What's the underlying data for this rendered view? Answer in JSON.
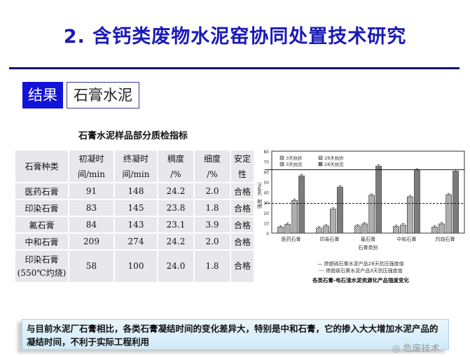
{
  "title": "2. 含钙类废物水泥窑协同处置技术研究",
  "tags": {
    "result": "结果",
    "topic": "石膏水泥"
  },
  "table": {
    "title": "石膏水泥样品部分质检指标",
    "headers": [
      [
        "石膏种类",
        ""
      ],
      [
        "初凝时",
        "间/min"
      ],
      [
        "终凝时",
        "间/min"
      ],
      [
        "稠度",
        "/%"
      ],
      [
        "细度",
        "/%"
      ],
      [
        "安定",
        "性"
      ]
    ],
    "rows": [
      [
        "医药石膏",
        "91",
        "148",
        "24.2",
        "2.0",
        "合格"
      ],
      [
        "印染石膏",
        "83",
        "145",
        "23.8",
        "1.8",
        "合格"
      ],
      [
        "氟石膏",
        "84",
        "143",
        "23.1",
        "3.9",
        "合格"
      ],
      [
        "中和石膏",
        "209",
        "274",
        "24.2",
        "2.0",
        "合格"
      ],
      [
        "印染石膏|(550℃灼烧)",
        "58",
        "100",
        "24.0",
        "1.8",
        "合格"
      ]
    ]
  },
  "chart_data": {
    "type": "bar",
    "ylabel": "强度（MPa）",
    "xlabel": "石膏类别",
    "ylim": [
      0,
      80
    ],
    "yticks": [
      0,
      10,
      20,
      30,
      40,
      50,
      60,
      70,
      80
    ],
    "categories": [
      "医药石膏",
      "印染石膏",
      "氟石膏",
      "中和石膏",
      "灼烧石膏"
    ],
    "series": [
      {
        "name": "3天抗折",
        "values": [
          6,
          5,
          7,
          6.5,
          6
        ]
      },
      {
        "name": "28天抗折",
        "values": [
          8.5,
          7,
          9,
          8,
          9
        ]
      },
      {
        "name": "3天抗压",
        "values": [
          32,
          23.5,
          37,
          35.5,
          37.5
        ]
      },
      {
        "name": "28天抗压",
        "values": [
          56,
          45,
          65.5,
          61.5,
          60.5
        ]
      }
    ],
    "reference_lines": [
      {
        "value": 62,
        "style": "solid",
        "label": "— 掺脱硫石膏水泥产品28天抗压强度值"
      },
      {
        "value": 29,
        "style": "dashed",
        "label": "--- 掺脱硫石膏水泥产品3天抗压强度值"
      }
    ],
    "caption": "各类石膏-电石渣水泥资源化产品强度变化",
    "legend_position": "top-left"
  },
  "note": "与目前水泥厂石膏相比，各类石膏凝结时间的变化差异大，特别是中和石膏，它的掺入大大增加水泥产品的凝结时间，不利于实际工程利用",
  "watermark": "危废技术"
}
